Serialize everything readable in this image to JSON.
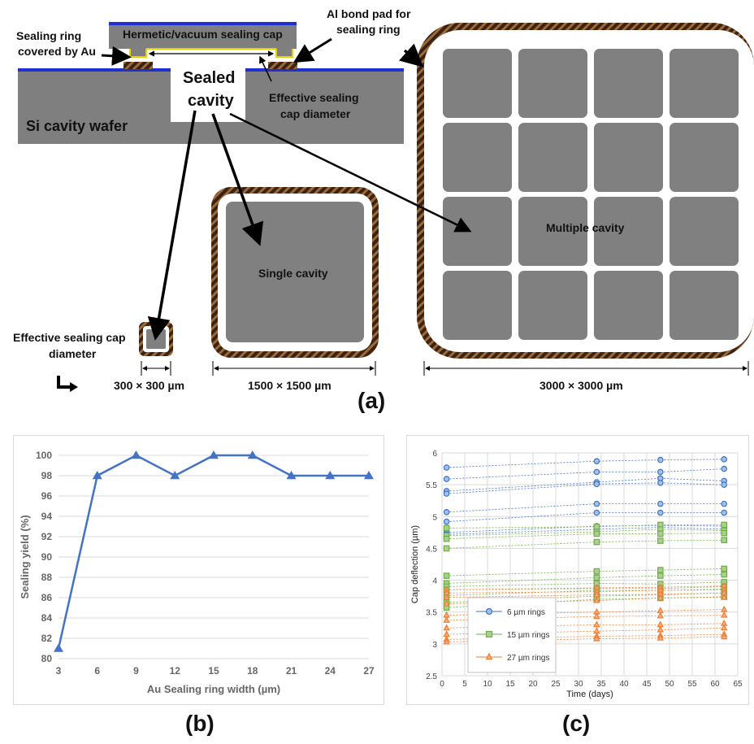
{
  "colors": {
    "wafer_gray": "#7f7f7f",
    "cavity_gray": "#808080",
    "ring_brown": "#4a2a14",
    "ring_stripe": "#8b5a2b",
    "blue_line": "#1f2fd0",
    "au_yellow": "#e6d200",
    "series_blue": "#4472c4",
    "series_green": "#70ad47",
    "series_orange": "#ed7d31"
  },
  "diagram": {
    "cross_section": {
      "cap_label": "Hermetic/vacuum sealing cap",
      "ring_au_label_line1": "Sealing ring",
      "ring_au_label_line2": "covered by Au",
      "al_pad_label_line1": "Al bond pad for",
      "al_pad_label_line2": "sealing ring",
      "cavity_label_line1": "Sealed",
      "cavity_label_line2": "cavity",
      "effective_label_line1": "Effective sealing",
      "effective_label_line2": "cap diameter",
      "wafer_label": "Si cavity wafer"
    },
    "small_label_line1": "Effective sealing cap",
    "small_label_line2": "diameter",
    "single_label": "Single cavity",
    "multiple_label": "Multiple cavity",
    "dim_small": "300 × 300 µm",
    "dim_single": "1500 × 1500 µm",
    "dim_multiple": "3000 × 3000 µm",
    "panel_label": "(a)"
  },
  "panel_b_label": "(b)",
  "panel_c_label": "(c)",
  "chart_data": [
    {
      "type": "line",
      "panel": "b",
      "xlabel": "Au Sealing ring width (µm)",
      "ylabel": "Sealing yield (%)",
      "categories": [
        "3",
        "6",
        "9",
        "12",
        "15",
        "18",
        "21",
        "24",
        "27"
      ],
      "series": [
        {
          "values": [
            81,
            98,
            100,
            98,
            100,
            100,
            98,
            98,
            98
          ],
          "color": "#4472c4",
          "marker": "triangle"
        }
      ],
      "ylim": [
        80,
        100
      ],
      "yticks": [
        80,
        82,
        84,
        86,
        88,
        90,
        92,
        94,
        96,
        98,
        100
      ],
      "grid": true
    },
    {
      "type": "scatter",
      "panel": "c",
      "xlabel": "Time (days)",
      "ylabel": "Cap deflection (µm)",
      "xlim": [
        0,
        65
      ],
      "ylim": [
        2.5,
        6
      ],
      "xticks": [
        0,
        5,
        10,
        15,
        20,
        25,
        30,
        35,
        40,
        45,
        50,
        55,
        60,
        65
      ],
      "yticks": [
        2.5,
        3,
        3.5,
        4,
        4.5,
        5,
        5.5,
        6
      ],
      "grid": true,
      "legend_position": "bottom-left",
      "x": [
        1,
        34,
        48,
        62
      ],
      "series": [
        {
          "name": "6 µm rings",
          "color": "#4472c4",
          "marker": "circle",
          "curves": [
            [
              5.77,
              5.87,
              5.89,
              5.9
            ],
            [
              5.59,
              5.7,
              5.7,
              5.75
            ],
            [
              5.4,
              5.54,
              5.6,
              5.56
            ],
            [
              5.36,
              5.51,
              5.53,
              5.5
            ],
            [
              5.07,
              5.2,
              5.2,
              5.2
            ],
            [
              4.92,
              5.06,
              5.06,
              5.06
            ],
            [
              4.75,
              4.85,
              4.86,
              4.85
            ],
            [
              4.72,
              4.8,
              4.83,
              4.8
            ]
          ]
        },
        {
          "name": "15 µm rings",
          "color": "#70ad47",
          "marker": "square",
          "curves": [
            [
              4.82,
              4.84,
              4.87,
              4.87
            ],
            [
              4.7,
              4.76,
              4.8,
              4.78
            ],
            [
              4.65,
              4.73,
              4.73,
              4.74
            ],
            [
              4.5,
              4.6,
              4.62,
              4.63
            ],
            [
              4.07,
              4.14,
              4.16,
              4.18
            ],
            [
              3.95,
              4.04,
              4.07,
              4.09
            ],
            [
              3.9,
              3.95,
              3.94,
              3.97
            ],
            [
              3.85,
              3.87,
              3.87,
              3.9
            ],
            [
              3.76,
              3.84,
              3.84,
              3.86
            ],
            [
              3.65,
              3.75,
              3.77,
              3.8
            ],
            [
              3.57,
              3.7,
              3.72,
              3.74
            ]
          ]
        },
        {
          "name": "27 µm rings",
          "color": "#ed7d31",
          "marker": "triangle",
          "curves": [
            [
              3.85,
              3.88,
              3.89,
              3.91
            ],
            [
              3.8,
              3.82,
              3.84,
              3.85
            ],
            [
              3.73,
              3.77,
              3.78,
              3.8
            ],
            [
              3.63,
              3.68,
              3.72,
              3.73
            ],
            [
              3.45,
              3.5,
              3.52,
              3.54
            ],
            [
              3.37,
              3.43,
              3.44,
              3.45
            ],
            [
              3.25,
              3.3,
              3.3,
              3.32
            ],
            [
              3.15,
              3.2,
              3.22,
              3.25
            ],
            [
              3.07,
              3.12,
              3.13,
              3.15
            ],
            [
              3.03,
              3.08,
              3.09,
              3.11
            ]
          ]
        }
      ]
    }
  ]
}
